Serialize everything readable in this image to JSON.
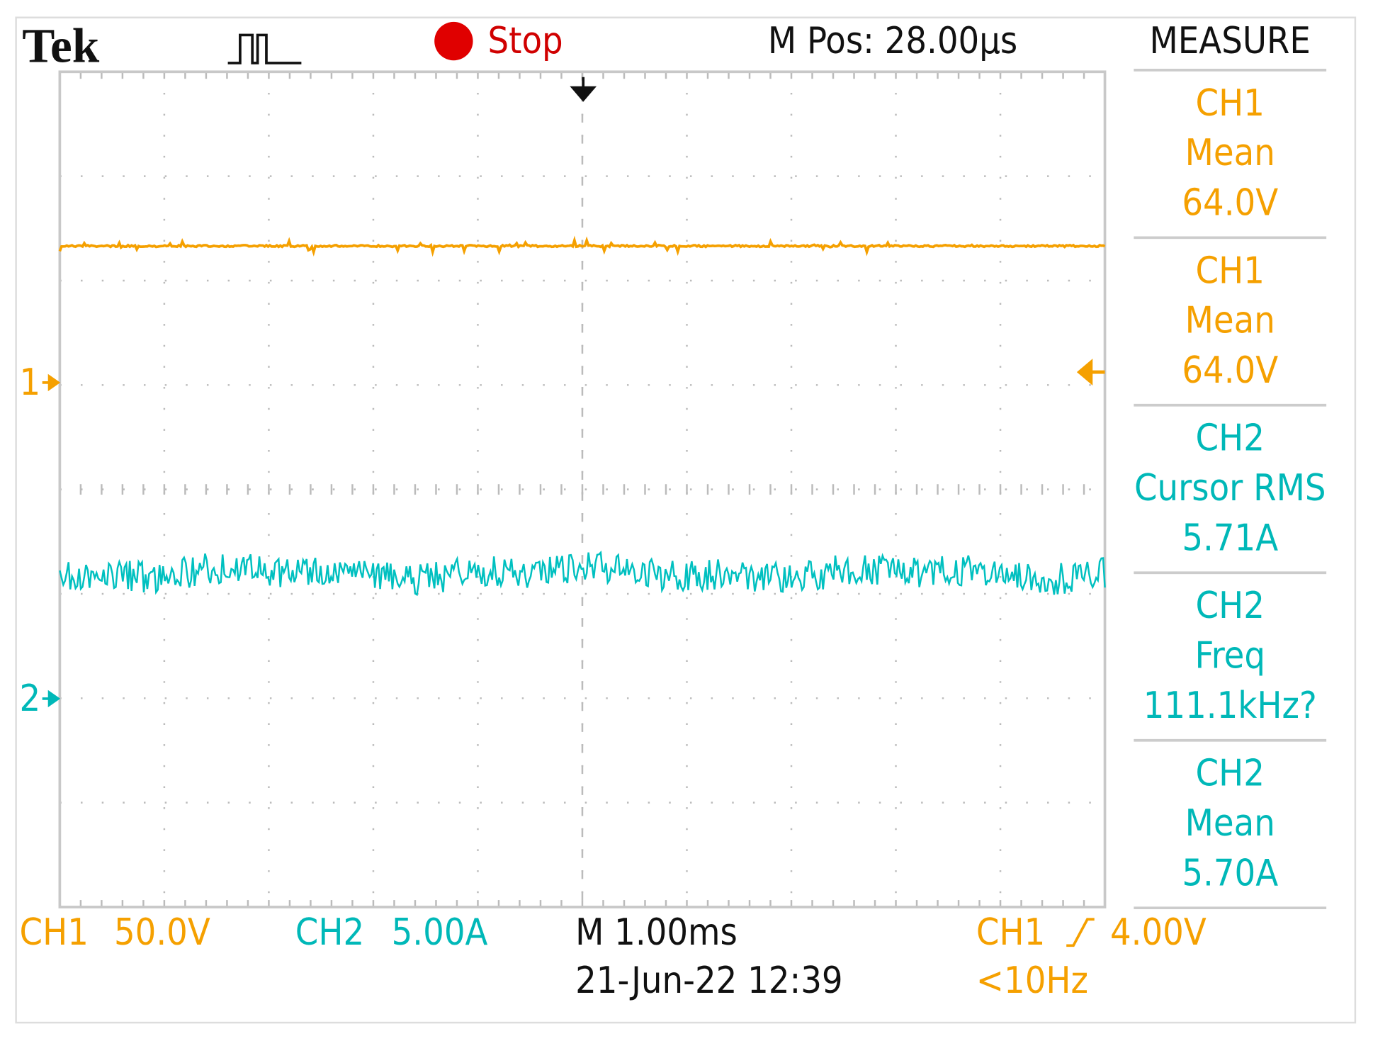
{
  "header": {
    "brand": "Tek",
    "status": "Stop",
    "position": "M Pos: 28.00µs"
  },
  "markers": {
    "ch1": "1",
    "ch2": "2"
  },
  "measure": {
    "title": "MEASURE",
    "items": [
      {
        "channel": "CH1",
        "name": "Mean",
        "value": "64.0V"
      },
      {
        "channel": "CH1",
        "name": "Mean",
        "value": "64.0V"
      },
      {
        "channel": "CH2",
        "name": "Cursor RMS",
        "value": "5.71A"
      },
      {
        "channel": "CH2",
        "name": "Freq",
        "value": "111.1kHz?"
      },
      {
        "channel": "CH2",
        "name": "Mean",
        "value": "5.70A"
      }
    ]
  },
  "footer": {
    "ch1": {
      "label": "CH1",
      "scale": "50.0V"
    },
    "ch2": {
      "label": "CH2",
      "scale": "5.00A"
    },
    "timebase": "M 1.00ms",
    "datetime": "21-Jun-22 12:39",
    "trigger": {
      "source": "CH1",
      "level": "4.00V",
      "frequency": "<10Hz"
    }
  }
}
